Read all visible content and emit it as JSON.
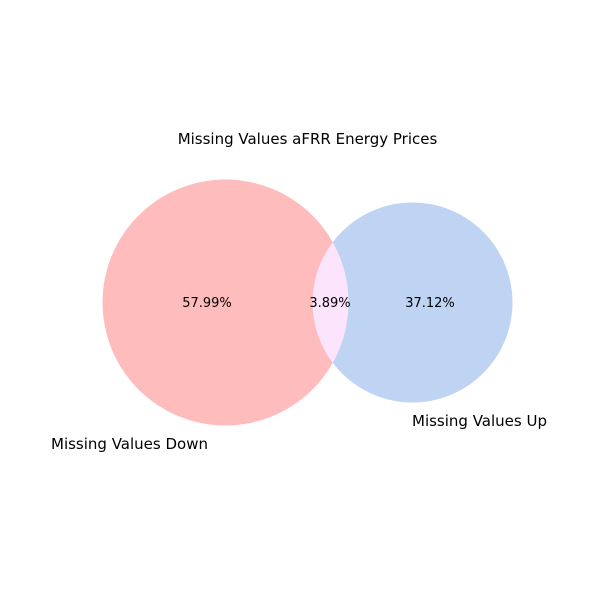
{
  "title": "Missing Values aFRR Energy Prices",
  "sets": [
    {
      "name": "Missing Values Down",
      "color": "#ffbcbc"
    },
    {
      "name": "Missing Values Up",
      "color": "#bfd4f2"
    }
  ],
  "regions": {
    "down_only": "57.99%",
    "overlap": "3.89%",
    "up_only": "37.12%"
  },
  "overlap_color": "#fde4fd"
}
